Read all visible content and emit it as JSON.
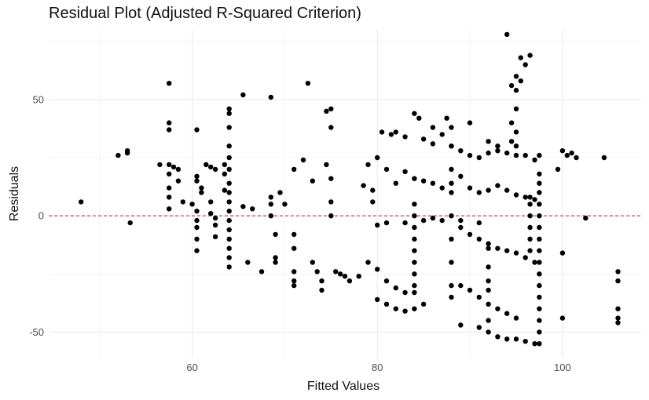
{
  "chart_data": {
    "type": "scatter",
    "title": "Residual Plot (Adjusted R-Squared Criterion)",
    "xlabel": "Fitted Values",
    "ylabel": "Residuals",
    "xlim": [
      44.5,
      108.5
    ],
    "ylim": [
      -61,
      80
    ],
    "x_ticks": [
      60,
      80,
      100
    ],
    "y_ticks": [
      -50,
      0,
      50
    ],
    "x_tick_labels": [
      "60",
      "80",
      "100"
    ],
    "y_tick_labels": [
      "-50",
      "0",
      "50"
    ],
    "grid": true,
    "reference_line": {
      "y": 0,
      "style": "dashed",
      "color": "#a0204a"
    },
    "point_color": "#000000",
    "points": [
      [
        48,
        6
      ],
      [
        52,
        26
      ],
      [
        53,
        28
      ],
      [
        53,
        27
      ],
      [
        53.3,
        -3
      ],
      [
        56.5,
        22
      ],
      [
        57.5,
        57
      ],
      [
        57.5,
        40
      ],
      [
        57.5,
        37
      ],
      [
        57.5,
        22
      ],
      [
        57.5,
        18
      ],
      [
        57.5,
        12
      ],
      [
        57.5,
        8
      ],
      [
        57.5,
        3
      ],
      [
        58,
        21
      ],
      [
        58.5,
        20
      ],
      [
        58.5,
        15
      ],
      [
        59,
        6
      ],
      [
        60,
        5
      ],
      [
        60.5,
        37
      ],
      [
        60.5,
        17
      ],
      [
        60.5,
        15
      ],
      [
        60.5,
        2
      ],
      [
        60.5,
        -2
      ],
      [
        60.5,
        -5
      ],
      [
        60.5,
        -10
      ],
      [
        60.5,
        -15
      ],
      [
        61,
        12
      ],
      [
        61,
        10
      ],
      [
        61.5,
        22
      ],
      [
        62,
        21
      ],
      [
        62.5,
        20
      ],
      [
        62,
        6
      ],
      [
        62,
        1
      ],
      [
        62.5,
        -1
      ],
      [
        62.5,
        -4
      ],
      [
        62.5,
        -9
      ],
      [
        63.5,
        11
      ],
      [
        63.5,
        18
      ],
      [
        63.5,
        22
      ],
      [
        64,
        46
      ],
      [
        64,
        44
      ],
      [
        64,
        38
      ],
      [
        64,
        30
      ],
      [
        64,
        25
      ],
      [
        64,
        20
      ],
      [
        64,
        14
      ],
      [
        64,
        10
      ],
      [
        64,
        6
      ],
      [
        64,
        2
      ],
      [
        64,
        -2
      ],
      [
        64,
        -6
      ],
      [
        64,
        -10
      ],
      [
        64,
        -14
      ],
      [
        64,
        -18
      ],
      [
        64,
        -22
      ],
      [
        65.5,
        52
      ],
      [
        65.5,
        4
      ],
      [
        66,
        -20
      ],
      [
        66.5,
        3
      ],
      [
        67.5,
        -24
      ],
      [
        68.5,
        51
      ],
      [
        68.5,
        8
      ],
      [
        68.5,
        5
      ],
      [
        68.5,
        0
      ],
      [
        69,
        -8
      ],
      [
        69,
        -18
      ],
      [
        69,
        -20
      ],
      [
        69.5,
        10
      ],
      [
        70,
        5
      ],
      [
        71,
        20
      ],
      [
        71,
        -8
      ],
      [
        71,
        -14
      ],
      [
        71,
        -24
      ],
      [
        71,
        -28
      ],
      [
        71,
        -30
      ],
      [
        72,
        24
      ],
      [
        72.5,
        57
      ],
      [
        73,
        15
      ],
      [
        73,
        -20
      ],
      [
        73.5,
        -24
      ],
      [
        74,
        -28
      ],
      [
        74,
        -32
      ],
      [
        74.5,
        22
      ],
      [
        74.5,
        45
      ],
      [
        75,
        46
      ],
      [
        75,
        16
      ],
      [
        75,
        38
      ],
      [
        75,
        6
      ],
      [
        75,
        0
      ],
      [
        75.5,
        -24
      ],
      [
        76,
        -25
      ],
      [
        76.5,
        -26
      ],
      [
        77,
        -28
      ],
      [
        78,
        -26
      ],
      [
        78.5,
        13
      ],
      [
        79.5,
        11
      ],
      [
        79.5,
        6
      ],
      [
        80.5,
        36
      ],
      [
        81.5,
        35
      ],
      [
        82,
        36
      ],
      [
        83,
        34
      ],
      [
        85,
        33
      ],
      [
        86,
        31
      ],
      [
        79,
        22
      ],
      [
        80,
        25
      ],
      [
        81,
        20
      ],
      [
        82,
        14
      ],
      [
        83,
        19
      ],
      [
        84,
        16
      ],
      [
        85,
        15
      ],
      [
        86,
        14
      ],
      [
        87,
        12
      ],
      [
        88,
        14
      ],
      [
        89,
        17
      ],
      [
        80,
        -4
      ],
      [
        81,
        -3
      ],
      [
        83,
        -3
      ],
      [
        85,
        -2
      ],
      [
        86,
        -1
      ],
      [
        87,
        -2
      ],
      [
        89,
        -2
      ],
      [
        91,
        -3
      ],
      [
        79,
        -20
      ],
      [
        80,
        -23
      ],
      [
        81,
        -28
      ],
      [
        82,
        -31
      ],
      [
        83,
        -33
      ],
      [
        80,
        -36
      ],
      [
        81,
        -38
      ],
      [
        82,
        -40
      ],
      [
        83,
        -41
      ],
      [
        84,
        -40
      ],
      [
        85,
        -38
      ],
      [
        84,
        44
      ],
      [
        84.5,
        42
      ],
      [
        84,
        5
      ],
      [
        84,
        0
      ],
      [
        84,
        -5
      ],
      [
        84,
        -10
      ],
      [
        84,
        -15
      ],
      [
        84,
        -20
      ],
      [
        84,
        -25
      ],
      [
        84,
        -30
      ],
      [
        84,
        -33
      ],
      [
        86,
        38
      ],
      [
        87,
        35
      ],
      [
        88,
        30
      ],
      [
        89,
        28
      ],
      [
        90,
        26
      ],
      [
        91,
        25
      ],
      [
        92,
        27
      ],
      [
        93,
        28
      ],
      [
        94,
        27
      ],
      [
        95,
        26
      ],
      [
        96,
        26
      ],
      [
        97,
        24
      ],
      [
        87.5,
        42
      ],
      [
        88,
        38
      ],
      [
        88,
        30
      ],
      [
        88,
        20
      ],
      [
        88,
        10
      ],
      [
        88,
        0
      ],
      [
        88,
        -10
      ],
      [
        88,
        -20
      ],
      [
        88,
        -30
      ],
      [
        88,
        -35
      ],
      [
        90,
        40
      ],
      [
        92,
        32
      ],
      [
        93,
        30
      ],
      [
        90,
        12
      ],
      [
        91,
        10
      ],
      [
        92,
        11
      ],
      [
        93,
        13
      ],
      [
        94,
        11
      ],
      [
        95,
        9
      ],
      [
        96,
        8
      ],
      [
        97,
        7
      ],
      [
        89,
        -5
      ],
      [
        90,
        -8
      ],
      [
        91,
        -10
      ],
      [
        92,
        -12
      ],
      [
        93,
        -14
      ],
      [
        94,
        -15
      ],
      [
        95,
        -16
      ],
      [
        96,
        -18
      ],
      [
        97,
        -20
      ],
      [
        89,
        -30
      ],
      [
        90,
        -32
      ],
      [
        91,
        -35
      ],
      [
        92,
        -38
      ],
      [
        93,
        -40
      ],
      [
        94,
        -42
      ],
      [
        95,
        -44
      ],
      [
        89,
        -47
      ],
      [
        91,
        -48
      ],
      [
        92,
        -50
      ],
      [
        93,
        -52
      ],
      [
        94,
        -53
      ],
      [
        95,
        -53
      ],
      [
        96,
        -54
      ],
      [
        97,
        -55
      ],
      [
        92,
        -14
      ],
      [
        92,
        -22
      ],
      [
        92,
        -28
      ],
      [
        92,
        -32
      ],
      [
        92,
        -45
      ],
      [
        94,
        78
      ],
      [
        94.5,
        56
      ],
      [
        95,
        60
      ],
      [
        95,
        54
      ],
      [
        95.5,
        58
      ],
      [
        95,
        46
      ],
      [
        94.5,
        40
      ],
      [
        95,
        36
      ],
      [
        94.5,
        32
      ],
      [
        95,
        30
      ],
      [
        95.5,
        68
      ],
      [
        96,
        65
      ],
      [
        96.5,
        69
      ],
      [
        96.5,
        8
      ],
      [
        96.5,
        5
      ],
      [
        96.5,
        0
      ],
      [
        96.5,
        -5
      ],
      [
        96.5,
        -10
      ],
      [
        96.5,
        -15
      ],
      [
        97.5,
        26
      ],
      [
        97.5,
        18
      ],
      [
        97.5,
        14
      ],
      [
        97.5,
        10
      ],
      [
        97.5,
        5
      ],
      [
        97.5,
        0
      ],
      [
        97.5,
        -5
      ],
      [
        97.5,
        -10
      ],
      [
        97.5,
        -15
      ],
      [
        97.5,
        -20
      ],
      [
        97.5,
        -25
      ],
      [
        97.5,
        -30
      ],
      [
        97.5,
        -35
      ],
      [
        97.5,
        -40
      ],
      [
        97.5,
        -45
      ],
      [
        97.5,
        -50
      ],
      [
        97.5,
        -55
      ],
      [
        99.5,
        20
      ],
      [
        100,
        28
      ],
      [
        100.5,
        26
      ],
      [
        101,
        27
      ],
      [
        101.5,
        25
      ],
      [
        100,
        -16
      ],
      [
        100,
        -44
      ],
      [
        102.5,
        -1
      ],
      [
        104.5,
        25
      ],
      [
        106,
        -24
      ],
      [
        106,
        -28
      ],
      [
        106,
        -40
      ],
      [
        106,
        -44
      ],
      [
        106,
        -46
      ]
    ]
  }
}
